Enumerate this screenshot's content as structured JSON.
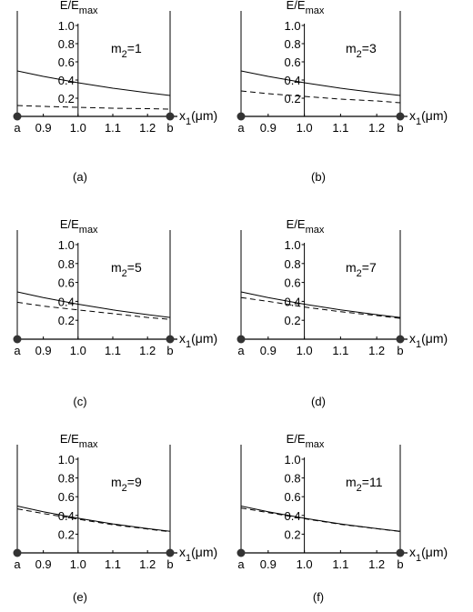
{
  "chart_data": [
    {
      "type": "line",
      "panel_label": "(a)",
      "annotation": {
        "base": "m",
        "sub": "2",
        "rest": "=1"
      },
      "ylabel": {
        "base": "E/E",
        "sub": "max"
      },
      "xlabel": {
        "base": "x",
        "sub": "1",
        "rest": "(μm)"
      },
      "x_endpoint_labels": [
        "a",
        "b"
      ],
      "x_ticks": [
        "0.9",
        "1.0",
        "1.1",
        "1.2"
      ],
      "y_ticks": [
        "0.2",
        "0.4",
        "0.6",
        "0.8",
        "1.0"
      ],
      "xlim": [
        0.825,
        1.265
      ],
      "ylim": [
        0,
        1.0
      ],
      "series": [
        {
          "style": "solid",
          "x": [
            0.825,
            0.9,
            1.0,
            1.1,
            1.2,
            1.265
          ],
          "y": [
            0.5,
            0.44,
            0.37,
            0.31,
            0.26,
            0.23
          ]
        },
        {
          "style": "dashed",
          "x": [
            0.825,
            0.9,
            1.0,
            1.1,
            1.2,
            1.265
          ],
          "y": [
            0.12,
            0.11,
            0.1,
            0.09,
            0.085,
            0.08
          ]
        }
      ]
    },
    {
      "type": "line",
      "panel_label": "(b)",
      "annotation": {
        "base": "m",
        "sub": "2",
        "rest": "=3"
      },
      "ylabel": {
        "base": "E/E",
        "sub": "max"
      },
      "xlabel": {
        "base": "x",
        "sub": "1",
        "rest": "(μm)"
      },
      "x_endpoint_labels": [
        "a",
        "b"
      ],
      "x_ticks": [
        "0.9",
        "1.0",
        "1.1",
        "1.2"
      ],
      "y_ticks": [
        "0.2",
        "0.4",
        "0.6",
        "0.8",
        "1.0"
      ],
      "xlim": [
        0.825,
        1.265
      ],
      "ylim": [
        0,
        1.0
      ],
      "series": [
        {
          "style": "solid",
          "x": [
            0.825,
            0.9,
            1.0,
            1.1,
            1.2,
            1.265
          ],
          "y": [
            0.5,
            0.44,
            0.37,
            0.31,
            0.26,
            0.23
          ]
        },
        {
          "style": "dashed",
          "x": [
            0.825,
            0.9,
            1.0,
            1.1,
            1.2,
            1.265
          ],
          "y": [
            0.28,
            0.25,
            0.22,
            0.19,
            0.17,
            0.15
          ]
        }
      ]
    },
    {
      "type": "line",
      "panel_label": "(c)",
      "annotation": {
        "base": "m",
        "sub": "2",
        "rest": "=5"
      },
      "ylabel": {
        "base": "E/E",
        "sub": "max"
      },
      "xlabel": {
        "base": "x",
        "sub": "1",
        "rest": "(μm)"
      },
      "x_endpoint_labels": [
        "a",
        "b"
      ],
      "x_ticks": [
        "0.9",
        "1.0",
        "1.1",
        "1.2"
      ],
      "y_ticks": [
        "0.2",
        "0.4",
        "0.6",
        "0.8",
        "1.0"
      ],
      "xlim": [
        0.825,
        1.265
      ],
      "ylim": [
        0,
        1.0
      ],
      "series": [
        {
          "style": "solid",
          "x": [
            0.825,
            0.9,
            1.0,
            1.1,
            1.2,
            1.265
          ],
          "y": [
            0.5,
            0.44,
            0.37,
            0.31,
            0.26,
            0.23
          ]
        },
        {
          "style": "dashed",
          "x": [
            0.825,
            0.9,
            1.0,
            1.1,
            1.2,
            1.265
          ],
          "y": [
            0.39,
            0.35,
            0.31,
            0.27,
            0.23,
            0.21
          ]
        }
      ]
    },
    {
      "type": "line",
      "panel_label": "(d)",
      "annotation": {
        "base": "m",
        "sub": "2",
        "rest": "=7"
      },
      "ylabel": {
        "base": "E/E",
        "sub": "max"
      },
      "xlabel": {
        "base": "x",
        "sub": "1",
        "rest": "(μm)"
      },
      "x_endpoint_labels": [
        "a",
        "b"
      ],
      "x_ticks": [
        "0.9",
        "1.0",
        "1.1",
        "1.2"
      ],
      "y_ticks": [
        "0.2",
        "0.4",
        "0.6",
        "0.8",
        "1.0"
      ],
      "xlim": [
        0.825,
        1.265
      ],
      "ylim": [
        0,
        1.0
      ],
      "series": [
        {
          "style": "solid",
          "x": [
            0.825,
            0.9,
            1.0,
            1.1,
            1.2,
            1.265
          ],
          "y": [
            0.5,
            0.44,
            0.37,
            0.31,
            0.26,
            0.23
          ]
        },
        {
          "style": "dashed",
          "x": [
            0.825,
            0.9,
            1.0,
            1.1,
            1.2,
            1.265
          ],
          "y": [
            0.44,
            0.4,
            0.34,
            0.29,
            0.25,
            0.22
          ]
        }
      ]
    },
    {
      "type": "line",
      "panel_label": "(e)",
      "annotation": {
        "base": "m",
        "sub": "2",
        "rest": "=9"
      },
      "ylabel": {
        "base": "E/E",
        "sub": "max"
      },
      "xlabel": {
        "base": "x",
        "sub": "1",
        "rest": "(μm)"
      },
      "x_endpoint_labels": [
        "a",
        "b"
      ],
      "x_ticks": [
        "0.9",
        "1.0",
        "1.1",
        "1.2"
      ],
      "y_ticks": [
        "0.2",
        "0.4",
        "0.6",
        "0.8",
        "1.0"
      ],
      "xlim": [
        0.825,
        1.265
      ],
      "ylim": [
        0,
        1.0
      ],
      "series": [
        {
          "style": "solid",
          "x": [
            0.825,
            0.9,
            1.0,
            1.1,
            1.2,
            1.265
          ],
          "y": [
            0.5,
            0.44,
            0.37,
            0.31,
            0.26,
            0.23
          ]
        },
        {
          "style": "dashed",
          "x": [
            0.825,
            0.9,
            1.0,
            1.1,
            1.2,
            1.265
          ],
          "y": [
            0.47,
            0.42,
            0.36,
            0.3,
            0.255,
            0.225
          ]
        }
      ]
    },
    {
      "type": "line",
      "panel_label": "(f)",
      "annotation": {
        "base": "m",
        "sub": "2",
        "rest": "=11"
      },
      "ylabel": {
        "base": "E/E",
        "sub": "max"
      },
      "xlabel": {
        "base": "x",
        "sub": "1",
        "rest": "(μm)"
      },
      "x_endpoint_labels": [
        "a",
        "b"
      ],
      "x_ticks": [
        "0.9",
        "1.0",
        "1.1",
        "1.2"
      ],
      "y_ticks": [
        "0.2",
        "0.4",
        "0.6",
        "0.8",
        "1.0"
      ],
      "xlim": [
        0.825,
        1.265
      ],
      "ylim": [
        0,
        1.0
      ],
      "series": [
        {
          "style": "solid",
          "x": [
            0.825,
            0.9,
            1.0,
            1.1,
            1.2,
            1.265
          ],
          "y": [
            0.5,
            0.44,
            0.37,
            0.31,
            0.26,
            0.23
          ]
        },
        {
          "style": "dashed",
          "x": [
            0.825,
            0.9,
            1.0,
            1.1,
            1.2,
            1.265
          ],
          "y": [
            0.48,
            0.43,
            0.365,
            0.305,
            0.258,
            0.228
          ]
        }
      ]
    }
  ]
}
